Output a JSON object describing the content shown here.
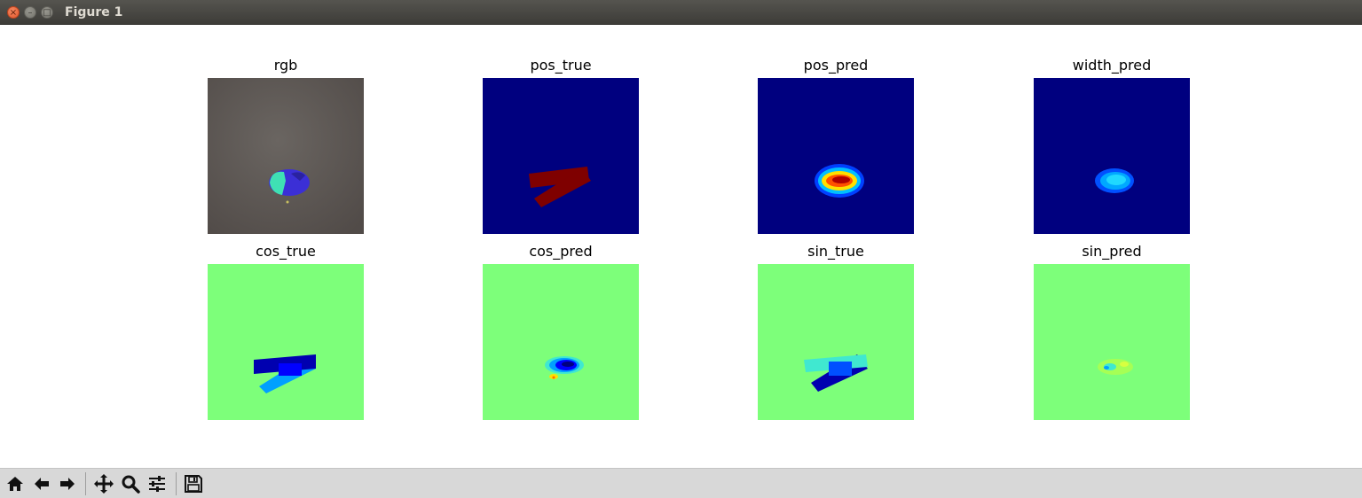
{
  "window": {
    "title": "Figure 1",
    "close_glyph": "×",
    "minimize_glyph": "–",
    "maximize_glyph": "□"
  },
  "figure": {
    "panels": [
      {
        "title": "rgb",
        "type": "photo-with-mask"
      },
      {
        "title": "pos_true",
        "type": "jet-map",
        "background": "#00007f"
      },
      {
        "title": "pos_pred",
        "type": "jet-map",
        "background": "#00007f"
      },
      {
        "title": "width_pred",
        "type": "jet-map",
        "background": "#00007f"
      },
      {
        "title": "cos_true",
        "type": "jet-map",
        "background": "#7dff7a"
      },
      {
        "title": "cos_pred",
        "type": "jet-map",
        "background": "#7dff7a"
      },
      {
        "title": "sin_true",
        "type": "jet-map",
        "background": "#7dff7a"
      },
      {
        "title": "sin_pred",
        "type": "jet-map",
        "background": "#7dff7a"
      }
    ],
    "colors": {
      "jet_dark_blue": "#00007f",
      "jet_blue": "#0000d4",
      "jet_cyan": "#00a0ff",
      "jet_aqua": "#40e8d0",
      "jet_mid_green": "#7dff7a",
      "jet_yellow": "#ffe000",
      "jet_red": "#d40000",
      "jet_dark_red": "#7f0000",
      "photo_gray": "#5f5956"
    }
  },
  "toolbar": {
    "buttons": [
      {
        "name": "home",
        "icon": "home-icon"
      },
      {
        "name": "back",
        "icon": "arrow-left-icon"
      },
      {
        "name": "forward",
        "icon": "arrow-right-icon"
      },
      {
        "name": "pan",
        "icon": "move-icon"
      },
      {
        "name": "zoom",
        "icon": "magnifier-icon"
      },
      {
        "name": "configure-subplots",
        "icon": "sliders-icon"
      },
      {
        "name": "save",
        "icon": "floppy-disk-icon"
      }
    ]
  }
}
